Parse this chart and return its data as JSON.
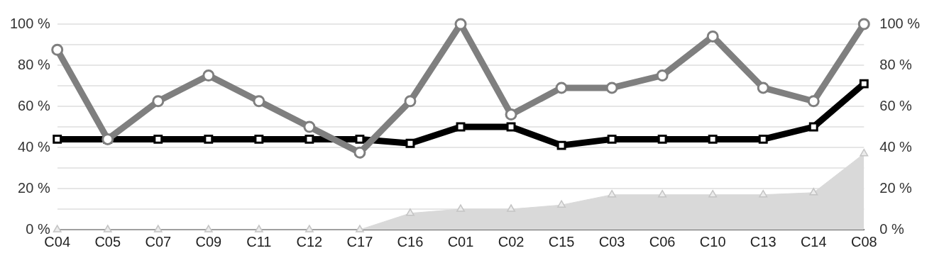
{
  "chart_data": {
    "type": "line",
    "categories": [
      "C04",
      "C05",
      "C07",
      "C09",
      "C11",
      "C12",
      "C17",
      "C16",
      "C01",
      "C02",
      "C15",
      "C03",
      "C06",
      "C10",
      "C13",
      "C14",
      "C08"
    ],
    "series": [
      {
        "type": "area",
        "color": "#d9d9d9",
        "marker": "triangle",
        "values": [
          0,
          0,
          0,
          0,
          0,
          0,
          0,
          8,
          10,
          10,
          12,
          17,
          17,
          17,
          17,
          18,
          37
        ]
      },
      {
        "type": "line",
        "color": "#000000",
        "marker": "square",
        "values": [
          44,
          44,
          44,
          44,
          44,
          44,
          44,
          42,
          50,
          50,
          41,
          44,
          44,
          44,
          44,
          50,
          71
        ]
      },
      {
        "type": "line",
        "color": "#7f7f7f",
        "marker": "circle",
        "values": [
          87.5,
          44,
          62.5,
          75,
          62.5,
          50,
          37.5,
          62.5,
          100,
          56,
          69,
          69,
          75,
          94,
          69,
          62.5,
          100
        ]
      }
    ],
    "ylim": [
      0,
      100
    ],
    "yticks": [
      {
        "value": 0,
        "label": "0 %"
      },
      {
        "value": 10,
        "label": null
      },
      {
        "value": 20,
        "label": "20 %"
      },
      {
        "value": 30,
        "label": null
      },
      {
        "value": 40,
        "label": "40 %"
      },
      {
        "value": 50,
        "label": null
      },
      {
        "value": 60,
        "label": "60 %"
      },
      {
        "value": 70,
        "label": null
      },
      {
        "value": 80,
        "label": "80 %"
      },
      {
        "value": 90,
        "label": null
      },
      {
        "value": 100,
        "label": "100 %"
      }
    ],
    "y2lim": [
      0,
      100
    ],
    "y2ticks": [
      {
        "value": 0,
        "label": "0 %"
      },
      {
        "value": 20,
        "label": "20 %"
      },
      {
        "value": 40,
        "label": "40 %"
      },
      {
        "value": 60,
        "label": "60 %"
      },
      {
        "value": 80,
        "label": "80 %"
      },
      {
        "value": 100,
        "label": "100 %"
      }
    ],
    "grid": "y",
    "legend": false
  }
}
